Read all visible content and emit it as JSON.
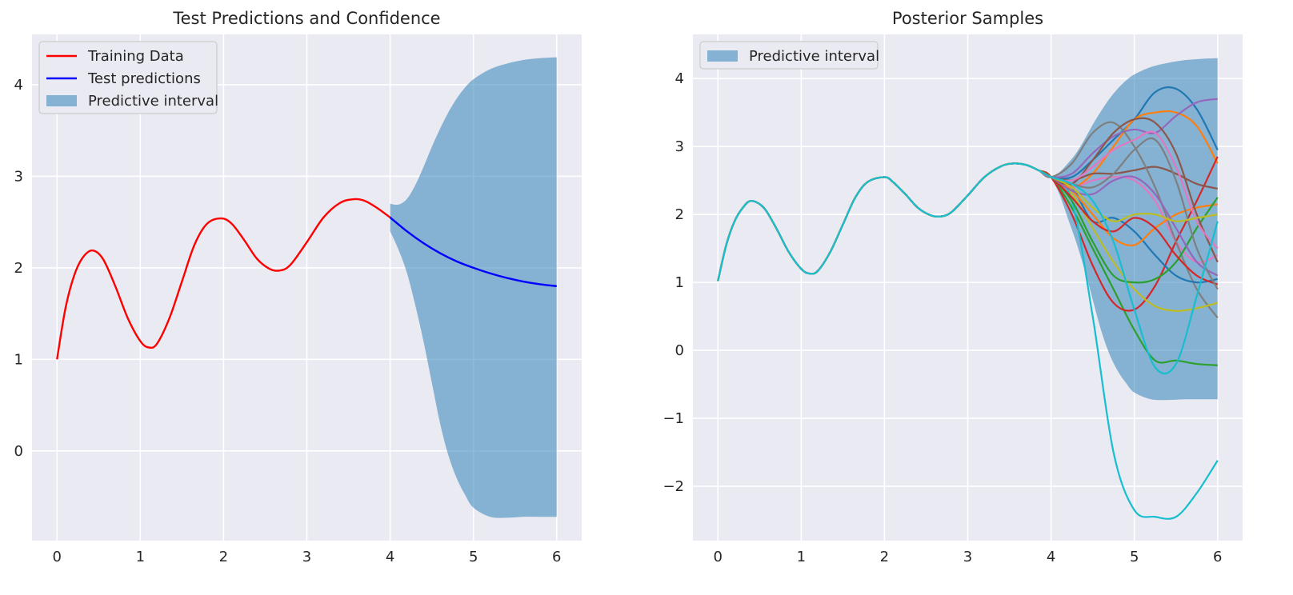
{
  "chart_data": [
    {
      "type": "line",
      "title": "Test Predictions and Confidence",
      "xlabel": "",
      "ylabel": "",
      "xlim": [
        -0.3,
        6.3
      ],
      "ylim": [
        -0.98,
        4.55
      ],
      "x_ticks": [
        "0",
        "1",
        "2",
        "3",
        "4",
        "5",
        "6"
      ],
      "y_ticks": [
        "0",
        "1",
        "2",
        "3",
        "4"
      ],
      "grid": true,
      "legend_position": "top-left",
      "legend": [
        "Training Data",
        "Test predictions",
        "Predictive interval"
      ],
      "series": [
        {
          "name": "Training Data",
          "color": "#ff0000",
          "points": [
            [
              0,
              1.0
            ],
            [
              0.1,
              1.55
            ],
            [
              0.2,
              1.9
            ],
            [
              0.3,
              2.1
            ],
            [
              0.42,
              2.19
            ],
            [
              0.55,
              2.1
            ],
            [
              0.7,
              1.8
            ],
            [
              0.85,
              1.45
            ],
            [
              1.0,
              1.2
            ],
            [
              1.1,
              1.13
            ],
            [
              1.2,
              1.17
            ],
            [
              1.35,
              1.45
            ],
            [
              1.5,
              1.85
            ],
            [
              1.65,
              2.25
            ],
            [
              1.8,
              2.48
            ],
            [
              1.97,
              2.54
            ],
            [
              2.1,
              2.48
            ],
            [
              2.25,
              2.3
            ],
            [
              2.4,
              2.1
            ],
            [
              2.55,
              1.99
            ],
            [
              2.67,
              1.97
            ],
            [
              2.8,
              2.03
            ],
            [
              3.0,
              2.28
            ],
            [
              3.2,
              2.55
            ],
            [
              3.4,
              2.71
            ],
            [
              3.57,
              2.75
            ],
            [
              3.7,
              2.73
            ],
            [
              3.85,
              2.65
            ],
            [
              4.0,
              2.55
            ]
          ]
        },
        {
          "name": "Test predictions",
          "color": "#0000ff",
          "points": [
            [
              4.0,
              2.55
            ],
            [
              4.2,
              2.4
            ],
            [
              4.4,
              2.27
            ],
            [
              4.6,
              2.16
            ],
            [
              4.8,
              2.07
            ],
            [
              5.0,
              2.0
            ],
            [
              5.2,
              1.94
            ],
            [
              5.4,
              1.89
            ],
            [
              5.6,
              1.85
            ],
            [
              5.8,
              1.82
            ],
            [
              6.0,
              1.8
            ]
          ]
        }
      ],
      "interval": {
        "name": "Predictive interval",
        "color": "#1f77b4",
        "opacity": 0.5,
        "x": [
          4.0,
          4.1,
          4.2,
          4.3,
          4.4,
          4.5,
          4.6,
          4.7,
          4.8,
          4.9,
          5.0,
          5.2,
          5.4,
          5.6,
          5.8,
          6.0
        ],
        "upper": [
          2.7,
          2.69,
          2.75,
          2.9,
          3.1,
          3.32,
          3.52,
          3.7,
          3.85,
          3.97,
          4.06,
          4.17,
          4.23,
          4.27,
          4.29,
          4.3
        ],
        "lower": [
          2.4,
          2.2,
          1.95,
          1.6,
          1.2,
          0.75,
          0.3,
          -0.05,
          -0.3,
          -0.48,
          -0.62,
          -0.72,
          -0.73,
          -0.72,
          -0.72,
          -0.72
        ]
      }
    },
    {
      "type": "line",
      "title": "Posterior Samples",
      "xlabel": "",
      "ylabel": "",
      "xlim": [
        -0.3,
        6.3
      ],
      "ylim": [
        -2.8,
        4.65
      ],
      "x_ticks": [
        "0",
        "1",
        "2",
        "3",
        "4",
        "5",
        "6"
      ],
      "y_ticks": [
        "−2",
        "−1",
        "0",
        "1",
        "2",
        "3",
        "4"
      ],
      "grid": true,
      "legend_position": "top-left",
      "legend": [
        "Predictive interval"
      ],
      "shared_prefix": {
        "x": [
          0,
          0.1,
          0.2,
          0.3,
          0.4,
          0.55,
          0.7,
          0.85,
          1.0,
          1.1,
          1.2,
          1.35,
          1.5,
          1.65,
          1.8,
          2.0,
          2.1,
          2.25,
          2.4,
          2.55,
          2.67,
          2.8,
          3.0,
          3.2,
          3.4,
          3.55,
          3.7,
          3.85,
          4.0
        ],
        "y": [
          1.02,
          1.55,
          1.9,
          2.1,
          2.2,
          2.1,
          1.8,
          1.45,
          1.2,
          1.13,
          1.17,
          1.45,
          1.85,
          2.25,
          2.48,
          2.55,
          2.48,
          2.3,
          2.1,
          1.99,
          1.97,
          2.03,
          2.28,
          2.55,
          2.71,
          2.75,
          2.73,
          2.65,
          2.55
        ]
      },
      "samples_x": [
        4.0,
        4.25,
        4.5,
        4.75,
        5.0,
        5.25,
        5.5,
        5.75,
        6.0
      ],
      "samples": [
        {
          "color": "#1f77b4",
          "values": [
            2.55,
            2.55,
            2.8,
            3.1,
            3.4,
            3.8,
            3.85,
            3.55,
            2.95
          ]
        },
        {
          "color": "#ff7f0e",
          "values": [
            2.55,
            2.4,
            2.6,
            3.0,
            3.4,
            3.5,
            3.5,
            3.3,
            2.75
          ]
        },
        {
          "color": "#2ca02c",
          "values": [
            2.55,
            2.1,
            1.5,
            0.9,
            0.3,
            -0.15,
            -0.15,
            -0.2,
            -0.22
          ]
        },
        {
          "color": "#d62728",
          "values": [
            2.55,
            2.0,
            1.25,
            0.7,
            0.6,
            0.95,
            1.6,
            2.2,
            2.85
          ]
        },
        {
          "color": "#9467bd",
          "values": [
            2.55,
            2.6,
            2.9,
            3.15,
            3.25,
            3.2,
            3.45,
            3.65,
            3.7
          ]
        },
        {
          "color": "#8c564b",
          "values": [
            2.55,
            2.5,
            2.6,
            2.6,
            2.65,
            2.7,
            2.6,
            2.45,
            2.38
          ]
        },
        {
          "color": "#e377c2",
          "values": [
            2.55,
            2.4,
            2.5,
            2.55,
            2.5,
            2.2,
            1.6,
            1.3,
            1.4
          ]
        },
        {
          "color": "#7f7f7f",
          "values": [
            2.55,
            2.75,
            3.2,
            3.35,
            3.0,
            2.4,
            1.6,
            0.9,
            0.48
          ]
        },
        {
          "color": "#bcbd22",
          "values": [
            2.55,
            2.3,
            1.8,
            1.3,
            0.9,
            0.65,
            0.58,
            0.62,
            0.7
          ]
        },
        {
          "color": "#17becf",
          "values": [
            2.55,
            2.2,
            0.5,
            -1.5,
            -2.35,
            -2.45,
            -2.45,
            -2.1,
            -1.62
          ]
        },
        {
          "color": "#1f77b4",
          "values": [
            2.55,
            2.4,
            1.9,
            1.95,
            1.75,
            1.4,
            1.1,
            1.0,
            1.05
          ]
        },
        {
          "color": "#ff7f0e",
          "values": [
            2.55,
            2.35,
            2.0,
            1.65,
            1.55,
            1.8,
            2.0,
            2.1,
            2.15
          ]
        },
        {
          "color": "#2ca02c",
          "values": [
            2.55,
            2.2,
            1.6,
            1.1,
            1.0,
            1.05,
            1.3,
            1.8,
            2.25
          ]
        },
        {
          "color": "#d62728",
          "values": [
            2.55,
            2.25,
            1.9,
            1.75,
            1.95,
            1.8,
            1.4,
            1.1,
            0.97
          ]
        },
        {
          "color": "#9467bd",
          "values": [
            2.55,
            2.35,
            2.3,
            2.5,
            2.55,
            2.3,
            1.8,
            1.3,
            1.1
          ]
        },
        {
          "color": "#8c564b",
          "values": [
            2.55,
            2.45,
            2.8,
            3.2,
            3.4,
            3.35,
            2.9,
            2.0,
            1.3
          ]
        },
        {
          "color": "#e377c2",
          "values": [
            2.55,
            2.5,
            2.7,
            2.95,
            3.1,
            3.2,
            2.7,
            1.9,
            1.5
          ]
        },
        {
          "color": "#7f7f7f",
          "values": [
            2.55,
            2.45,
            2.4,
            2.6,
            2.95,
            3.1,
            2.5,
            1.5,
            0.9
          ]
        },
        {
          "color": "#bcbd22",
          "values": [
            2.55,
            2.4,
            2.1,
            1.9,
            2.0,
            2.0,
            1.9,
            1.95,
            2.0
          ]
        },
        {
          "color": "#17becf",
          "values": [
            2.55,
            2.45,
            2.2,
            1.6,
            0.6,
            -0.25,
            -0.2,
            0.8,
            1.9
          ]
        }
      ],
      "interval": {
        "name": "Predictive interval",
        "color": "#1f77b4",
        "opacity": 0.5,
        "x": [
          4.0,
          4.1,
          4.2,
          4.3,
          4.4,
          4.5,
          4.6,
          4.7,
          4.8,
          4.9,
          5.0,
          5.2,
          5.4,
          5.6,
          5.8,
          6.0
        ],
        "upper": [
          2.55,
          2.62,
          2.75,
          2.9,
          3.1,
          3.32,
          3.52,
          3.7,
          3.85,
          3.97,
          4.06,
          4.17,
          4.23,
          4.27,
          4.29,
          4.3
        ],
        "lower": [
          2.55,
          2.3,
          1.95,
          1.6,
          1.2,
          0.75,
          0.3,
          -0.05,
          -0.3,
          -0.48,
          -0.62,
          -0.72,
          -0.73,
          -0.72,
          -0.72,
          -0.72
        ]
      }
    }
  ]
}
